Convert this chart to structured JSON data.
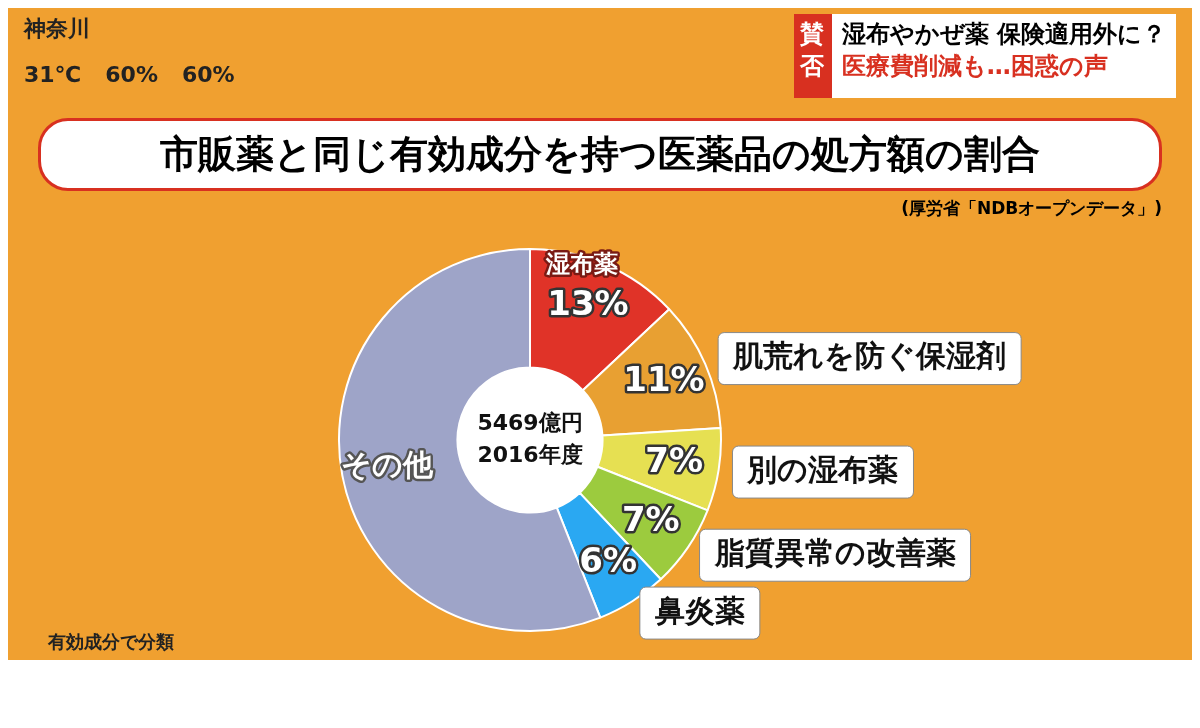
{
  "chart_data": {
    "type": "donut",
    "title": "市販薬と同じ有効成分を持つ医薬品の処方額の割合",
    "subtitle": "(厚労省「NDBオープンデータ」)",
    "categories": [
      "湿布薬",
      "肌荒れを防ぐ保湿剤",
      "別の湿布薬",
      "脂質異常の改善薬",
      "鼻炎薬",
      "その他"
    ],
    "values": [
      13,
      11,
      7,
      7,
      6,
      56
    ],
    "colors": [
      "#e03328",
      "#e8a032",
      "#e6e052",
      "#9ccb3e",
      "#2aa8f2",
      "#9ea4c8"
    ],
    "value_labels": [
      "13%",
      "11%",
      "7%",
      "7%",
      "6%",
      null
    ],
    "annotations": [
      "5469億円",
      "2016年度",
      "有効成分で分類",
      "賛否",
      "湿布やかぜ薬 保険適用外に？",
      "医療費削減も…困惑の声",
      "神奈川",
      "31℃",
      "60%",
      "60%"
    ],
    "legend": false
  }
}
